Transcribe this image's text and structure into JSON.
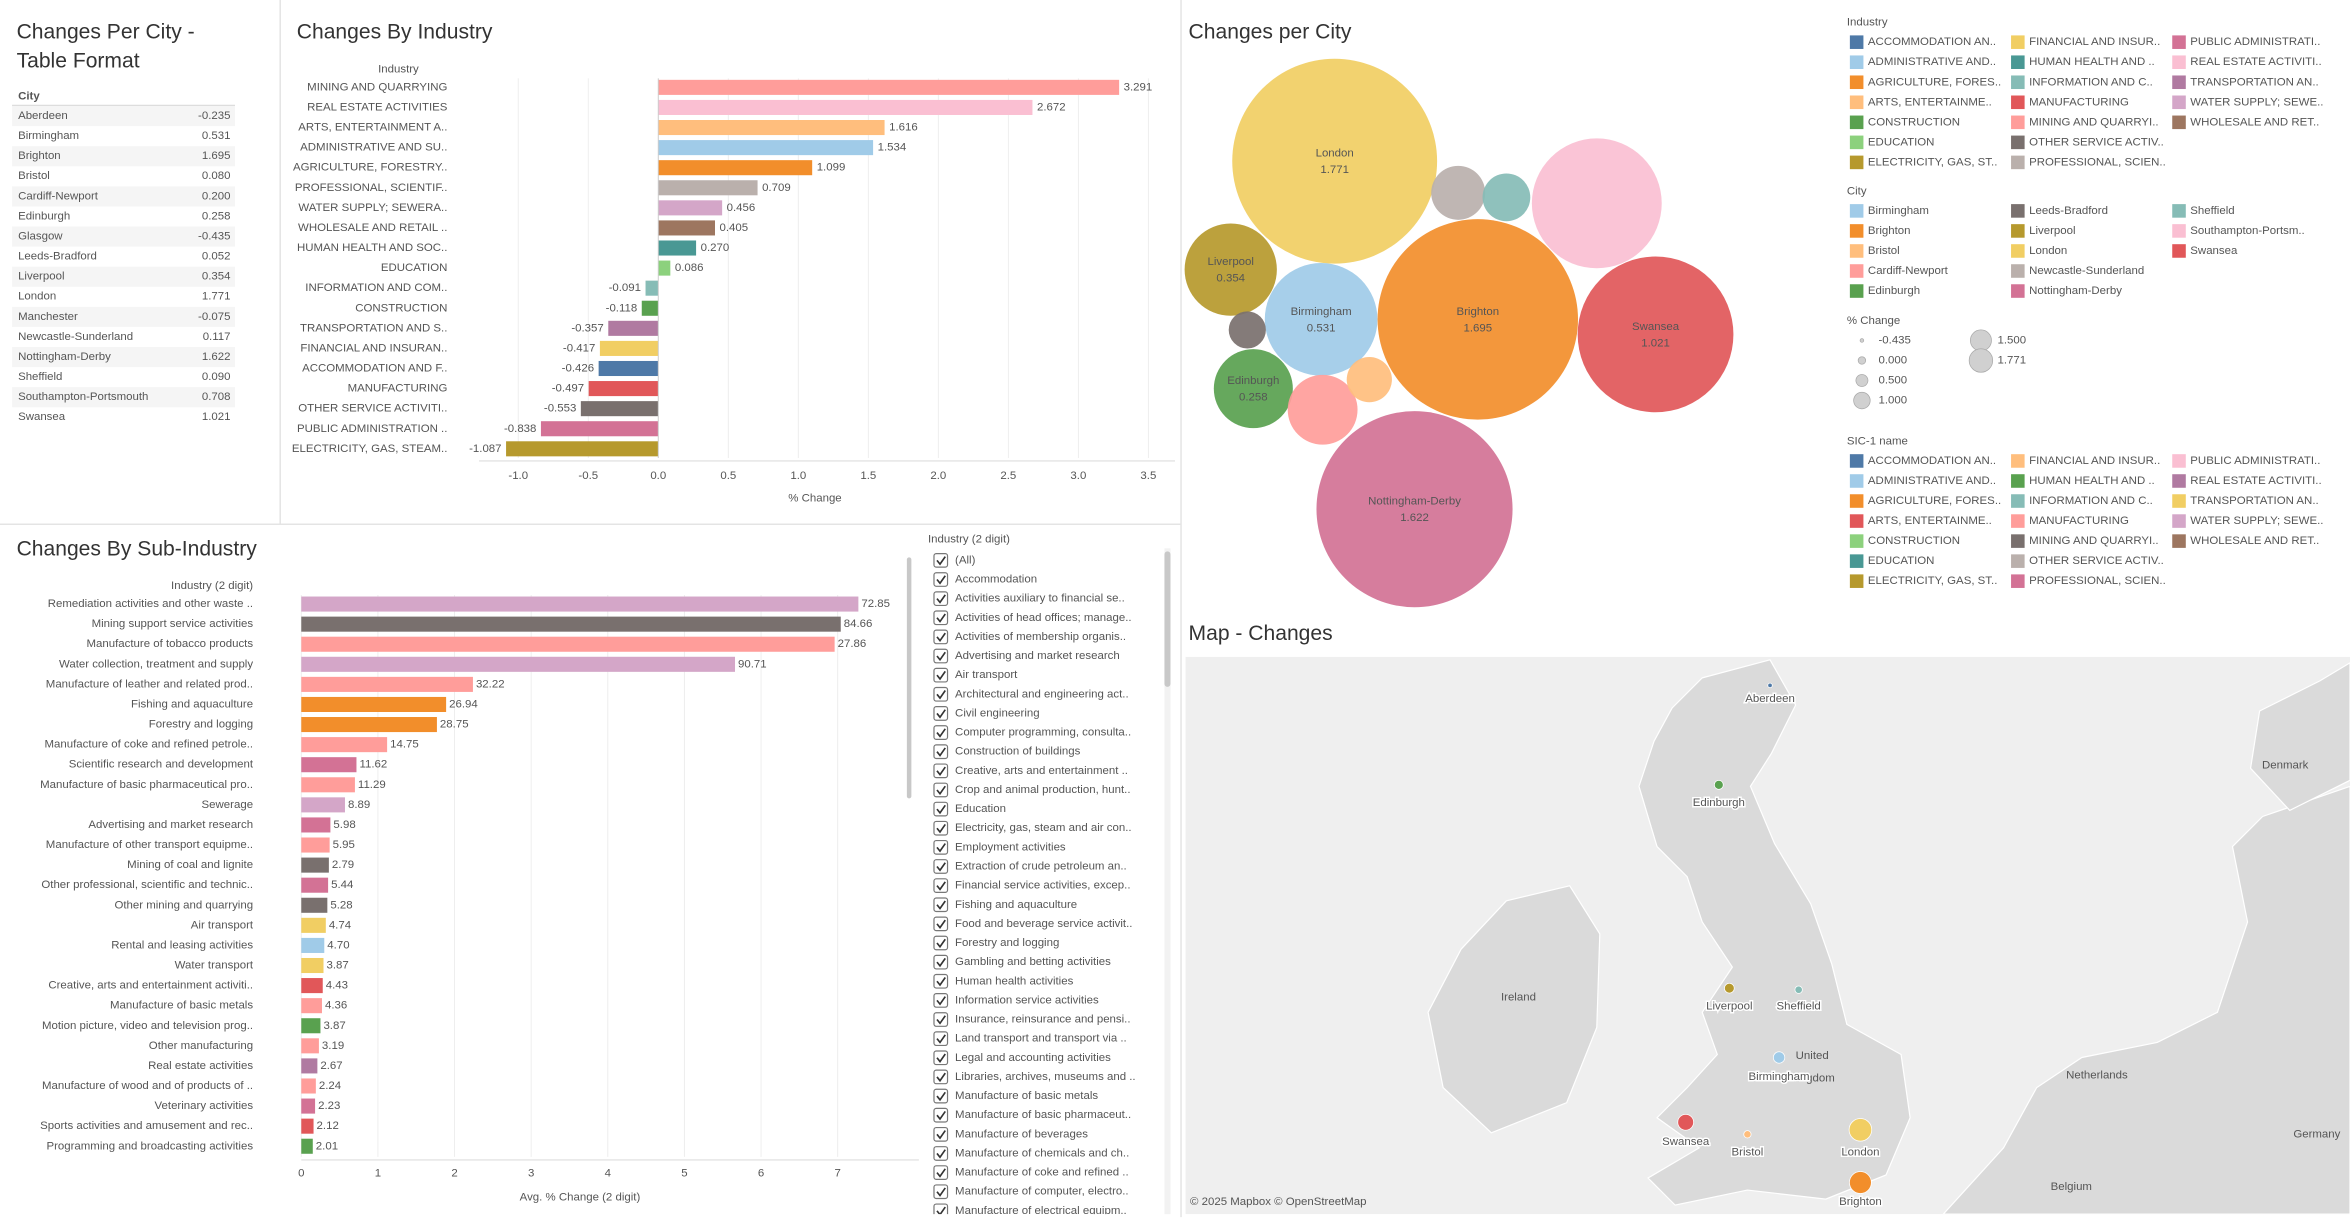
{
  "table": {
    "title": [
      "Changes Per City -",
      "Table Format"
    ],
    "header": "City",
    "rows": [
      [
        "Aberdeen",
        "-0.235"
      ],
      [
        "Birmingham",
        "0.531"
      ],
      [
        "Brighton",
        "1.695"
      ],
      [
        "Bristol",
        "0.080"
      ],
      [
        "Cardiff-Newport",
        "0.200"
      ],
      [
        "Edinburgh",
        "0.258"
      ],
      [
        "Glasgow",
        "-0.435"
      ],
      [
        "Leeds-Bradford",
        "0.052"
      ],
      [
        "Liverpool",
        "0.354"
      ],
      [
        "London",
        "1.771"
      ],
      [
        "Manchester",
        "-0.075"
      ],
      [
        "Newcastle-Sunderland",
        "0.117"
      ],
      [
        "Nottingham-Derby",
        "1.622"
      ],
      [
        "Sheffield",
        "0.090"
      ],
      [
        "Southampton-Portsmouth",
        "0.708"
      ],
      [
        "Swansea",
        "1.021"
      ]
    ]
  },
  "chart_data": [
    {
      "type": "hbar",
      "title": "Changes By Industry",
      "y_label": "Industry",
      "x_label": "% Change",
      "categories": [
        "MINING AND QUARRYING",
        "REAL ESTATE ACTIVITIES",
        "ARTS, ENTERTAINMENT A..",
        "ADMINISTRATIVE AND SU..",
        "AGRICULTURE, FORESTRY..",
        "PROFESSIONAL, SCIENTIF..",
        "WATER SUPPLY; SEWERA..",
        "WHOLESALE AND RETAIL ..",
        "HUMAN HEALTH AND SOC..",
        "EDUCATION",
        "INFORMATION AND COM..",
        "CONSTRUCTION",
        "TRANSPORTATION AND S..",
        "FINANCIAL AND INSURAN..",
        "ACCOMMODATION AND F..",
        "MANUFACTURING",
        "OTHER SERVICE ACTIVITI..",
        "PUBLIC ADMINISTRATION ..",
        "ELECTRICITY, GAS, STEAM.."
      ],
      "values": [
        3.291,
        2.672,
        1.616,
        1.534,
        1.099,
        0.709,
        0.456,
        0.405,
        0.27,
        0.086,
        -0.091,
        -0.118,
        -0.357,
        -0.417,
        -0.426,
        -0.497,
        -0.553,
        -0.838,
        -1.087
      ],
      "value_labels": [
        "3.291",
        "2.672",
        "1.616",
        "1.534",
        "1.099",
        "0.709",
        "0.456",
        "0.405",
        "0.270",
        "0.086",
        "-0.091",
        "-0.118",
        "-0.357",
        "-0.417",
        "-0.426",
        "-0.497",
        "-0.553",
        "-0.838",
        "-1.087"
      ],
      "colors": [
        "#ff9d9a",
        "#fabfd2",
        "#ffbe7d",
        "#a0cbe8",
        "#f28e2b",
        "#bab0ac",
        "#d4a6c8",
        "#9d7660",
        "#499894",
        "#8cd17d",
        "#86bcb6",
        "#59a14f",
        "#b07aa1",
        "#f1ce63",
        "#4e79a7",
        "#e15759",
        "#79706e",
        "#d37295",
        "#b6992d"
      ],
      "xlim": [
        -1.28,
        3.69
      ],
      "xticks": [
        {
          "value": -1,
          "label": "-1.0"
        },
        -0.5,
        {
          "value": 0,
          "label": "0.0"
        },
        0.5,
        {
          "value": 1,
          "label": "1.0"
        },
        1.5,
        {
          "value": 2,
          "label": "2.0"
        },
        2.5,
        {
          "value": 3,
          "label": "3.0"
        },
        3.5
      ],
      "grid": true
    },
    {
      "type": "bubble",
      "title": "Changes per City",
      "categories": [
        "London",
        "Brighton",
        "Nottingham-Derby",
        "Swansea",
        "Southampton-Portsmouth",
        "Birmingham",
        "Liverpool",
        "Edinburgh",
        "Cardiff-Newport",
        "Newcastle-Sunderland",
        "Bristol",
        "Sheffield",
        "Leeds-Bradford"
      ],
      "values": [
        1.771,
        1.695,
        1.622,
        1.021,
        0.708,
        0.531,
        0.354,
        0.258,
        0.2,
        0.117,
        0.08,
        0.09,
        0.052
      ],
      "colors": [
        "#f1ce63",
        "#f28e2b",
        "#d37295",
        "#e15759",
        "#fabfd2",
        "#a0cbe8",
        "#b6992d",
        "#59a14f",
        "#ff9d9a",
        "#bab0ac",
        "#ffbe7d",
        "#86bcb6",
        "#79706e"
      ]
    },
    {
      "type": "hbar",
      "title": "Changes By Sub-Industry",
      "y_label": "Industry (2 digit)",
      "x_label": "Avg. % Change (2 digit)",
      "categories": [
        "Remediation activities and other waste ..",
        "Mining support service activities",
        "Manufacture of tobacco products",
        "Water collection, treatment and supply",
        "Manufacture of leather and related prod..",
        "Fishing and aquaculture",
        "Forestry and logging",
        "Manufacture of coke and refined petrole..",
        "Scientific research and development",
        "Manufacture of basic pharmaceutical pro..",
        "Sewerage",
        "Advertising and market research",
        "Manufacture of other transport equipme..",
        "Mining of coal and lignite",
        "Other professional, scientific and technic..",
        "Other mining and quarrying",
        "Air transport",
        "Rental and leasing activities",
        "Water transport",
        "Creative, arts and entertainment activiti..",
        "Manufacture of basic metals",
        "Motion picture, video and television prog..",
        "Other manufacturing",
        "Real estate activities",
        "Manufacture of wood and of products of ..",
        "Veterinary activities",
        "Sports activities and amusement and rec..",
        "Programming and broadcasting activities"
      ],
      "values": [
        7.27,
        7.04,
        6.96,
        5.66,
        2.24,
        1.89,
        1.77,
        1.12,
        0.72,
        0.7,
        0.57,
        0.38,
        0.37,
        0.36,
        0.35,
        0.34,
        0.32,
        0.3,
        0.29,
        0.28,
        0.27,
        0.25,
        0.23,
        0.21,
        0.19,
        0.18,
        0.16,
        0.15
      ],
      "bar_labels": [
        "72.85",
        "84.66",
        "27.86",
        "90.71",
        "32.22",
        "26.94",
        "28.75",
        "14.75",
        "11.62",
        "11.29",
        "8.89",
        "5.98",
        "5.95",
        "2.79",
        "5.44",
        "5.28",
        "4.74",
        "4.70",
        "3.87",
        "4.43",
        "4.36",
        "3.87",
        "3.19",
        "2.67",
        "2.24",
        "2.23",
        "2.12",
        "2.01"
      ],
      "colors": [
        "#d4a6c8",
        "#79706e",
        "#ff9d9a",
        "#d4a6c8",
        "#ff9d9a",
        "#f28e2b",
        "#f28e2b",
        "#ff9d9a",
        "#d37295",
        "#ff9d9a",
        "#d4a6c8",
        "#d37295",
        "#ff9d9a",
        "#79706e",
        "#d37295",
        "#79706e",
        "#f1ce63",
        "#a0cbe8",
        "#f1ce63",
        "#e15759",
        "#ff9d9a",
        "#59a14f",
        "#ff9d9a",
        "#b07aa1",
        "#ff9d9a",
        "#d37295",
        "#e15759",
        "#59a14f"
      ],
      "xlim": [
        0,
        8.06
      ],
      "xticks": [
        0,
        1,
        2,
        3,
        4,
        5,
        6,
        7
      ],
      "grid": true
    },
    {
      "type": "map",
      "title": "Map - Changes",
      "cities": [
        "Aberdeen",
        "Edinburgh",
        "Liverpool",
        "Sheffield",
        "Birmingham",
        "Swansea",
        "Bristol",
        "London",
        "Brighton"
      ],
      "values": [
        -0.235,
        0.258,
        0.354,
        0.09,
        0.531,
        1.021,
        0.08,
        1.771,
        1.695
      ],
      "colors": [
        "#4e79a7",
        "#59a14f",
        "#b6992d",
        "#86bcb6",
        "#a0cbe8",
        "#e15759",
        "#ffbe7d",
        "#f1ce63",
        "#f28e2b"
      ],
      "places": [
        "Denmark",
        "Ireland",
        "United",
        "Kingdom",
        "Netherlands",
        "Belgium",
        "Germany"
      ],
      "credit": "© 2025 Mapbox © OpenStreetMap"
    }
  ],
  "legends": {
    "industry": {
      "title": "Industry",
      "items": [
        {
          "label": "ACCOMMODATION AN..",
          "color": "#4e79a7"
        },
        {
          "label": "ADMINISTRATIVE AND..",
          "color": "#a0cbe8"
        },
        {
          "label": "AGRICULTURE, FORES..",
          "color": "#f28e2b"
        },
        {
          "label": "ARTS, ENTERTAINME..",
          "color": "#ffbe7d"
        },
        {
          "label": "CONSTRUCTION",
          "color": "#59a14f"
        },
        {
          "label": "EDUCATION",
          "color": "#8cd17d"
        },
        {
          "label": "ELECTRICITY, GAS, ST..",
          "color": "#b6992d"
        },
        {
          "label": "FINANCIAL AND INSUR..",
          "color": "#f1ce63"
        },
        {
          "label": "HUMAN HEALTH AND ..",
          "color": "#499894"
        },
        {
          "label": "INFORMATION AND C..",
          "color": "#86bcb6"
        },
        {
          "label": "MANUFACTURING",
          "color": "#e15759"
        },
        {
          "label": "MINING AND QUARRYI..",
          "color": "#ff9d9a"
        },
        {
          "label": "OTHER SERVICE ACTIV..",
          "color": "#79706e"
        },
        {
          "label": "PROFESSIONAL, SCIEN..",
          "color": "#bab0ac"
        },
        {
          "label": "PUBLIC ADMINISTRATI..",
          "color": "#d37295"
        },
        {
          "label": "REAL ESTATE ACTIVITI..",
          "color": "#fabfd2"
        },
        {
          "label": "TRANSPORTATION AN..",
          "color": "#b07aa1"
        },
        {
          "label": "WATER SUPPLY; SEWE..",
          "color": "#d4a6c8"
        },
        {
          "label": "WHOLESALE AND RET..",
          "color": "#9d7660"
        }
      ]
    },
    "city": {
      "title": "City",
      "items": [
        {
          "label": "Birmingham",
          "color": "#a0cbe8"
        },
        {
          "label": "Brighton",
          "color": "#f28e2b"
        },
        {
          "label": "Bristol",
          "color": "#ffbe7d"
        },
        {
          "label": "Cardiff-Newport",
          "color": "#ff9d9a"
        },
        {
          "label": "Edinburgh",
          "color": "#59a14f"
        },
        {
          "label": "Leeds-Bradford",
          "color": "#79706e"
        },
        {
          "label": "Liverpool",
          "color": "#b6992d"
        },
        {
          "label": "London",
          "color": "#f1ce63"
        },
        {
          "label": "Newcastle-Sunderland",
          "color": "#bab0ac"
        },
        {
          "label": "Nottingham-Derby",
          "color": "#d37295"
        },
        {
          "label": "Sheffield",
          "color": "#86bcb6"
        },
        {
          "label": "Southampton-Portsm..",
          "color": "#fabfd2"
        },
        {
          "label": "Swansea",
          "color": "#e15759"
        }
      ]
    },
    "size": {
      "title": "% Change",
      "items": [
        {
          "value": -0.435,
          "label": "-0.435"
        },
        {
          "value": 0,
          "label": "0.000"
        },
        {
          "value": 0.5,
          "label": "0.500"
        },
        {
          "value": 1,
          "label": "1.000"
        },
        {
          "value": 1.5,
          "label": "1.500"
        },
        {
          "value": 1.771,
          "label": "1.771"
        }
      ]
    },
    "sic": {
      "title": "SIC-1 name",
      "items": [
        {
          "label": "ACCOMMODATION AN..",
          "color": "#4e79a7"
        },
        {
          "label": "ADMINISTRATIVE AND..",
          "color": "#a0cbe8"
        },
        {
          "label": "AGRICULTURE, FORES..",
          "color": "#f28e2b"
        },
        {
          "label": "ARTS, ENTERTAINME..",
          "color": "#e15759"
        },
        {
          "label": "CONSTRUCTION",
          "color": "#8cd17d"
        },
        {
          "label": "EDUCATION",
          "color": "#499894"
        },
        {
          "label": "ELECTRICITY, GAS, ST..",
          "color": "#b6992d"
        },
        {
          "label": "FINANCIAL AND INSUR..",
          "color": "#ffbe7d"
        },
        {
          "label": "HUMAN HEALTH AND ..",
          "color": "#59a14f"
        },
        {
          "label": "INFORMATION AND C..",
          "color": "#86bcb6"
        },
        {
          "label": "MANUFACTURING",
          "color": "#ff9d9a"
        },
        {
          "label": "MINING AND QUARRYI..",
          "color": "#79706e"
        },
        {
          "label": "OTHER SERVICE ACTIV..",
          "color": "#bab0ac"
        },
        {
          "label": "PROFESSIONAL, SCIEN..",
          "color": "#d37295"
        },
        {
          "label": "PUBLIC ADMINISTRATI..",
          "color": "#fabfd2"
        },
        {
          "label": "REAL ESTATE ACTIVITI..",
          "color": "#b07aa1"
        },
        {
          "label": "TRANSPORTATION AN..",
          "color": "#f1ce63"
        },
        {
          "label": "WATER SUPPLY; SEWE..",
          "color": "#d4a6c8"
        },
        {
          "label": "WHOLESALE AND RET..",
          "color": "#9d7660"
        }
      ]
    }
  },
  "filter": {
    "title": "Industry (2 digit)",
    "items": [
      "(All)",
      "Accommodation",
      "Activities auxiliary to financial se..",
      "Activities of head offices; manage..",
      "Activities of membership organis..",
      "Advertising and market research",
      "Air transport",
      "Architectural and engineering act..",
      "Civil engineering",
      "Computer programming, consulta..",
      "Construction of buildings",
      "Creative, arts and entertainment ..",
      "Crop and animal production, hunt..",
      "Education",
      "Electricity, gas, steam and air con..",
      "Employment activities",
      "Extraction of crude petroleum an..",
      "Financial service activities, excep..",
      "Fishing and aquaculture",
      "Food and beverage service activit..",
      "Forestry and logging",
      "Gambling and betting activities",
      "Human health activities",
      "Information service activities",
      "Insurance, reinsurance and pensi..",
      "Land transport and transport via ..",
      "Legal and accounting activities",
      "Libraries, archives, museums and ..",
      "Manufacture of basic metals",
      "Manufacture of basic pharmaceut..",
      "Manufacture of beverages",
      "Manufacture of chemicals and ch..",
      "Manufacture of coke and refined ..",
      "Manufacture of computer, electro..",
      "Manufacture of electrical equipm.."
    ]
  }
}
